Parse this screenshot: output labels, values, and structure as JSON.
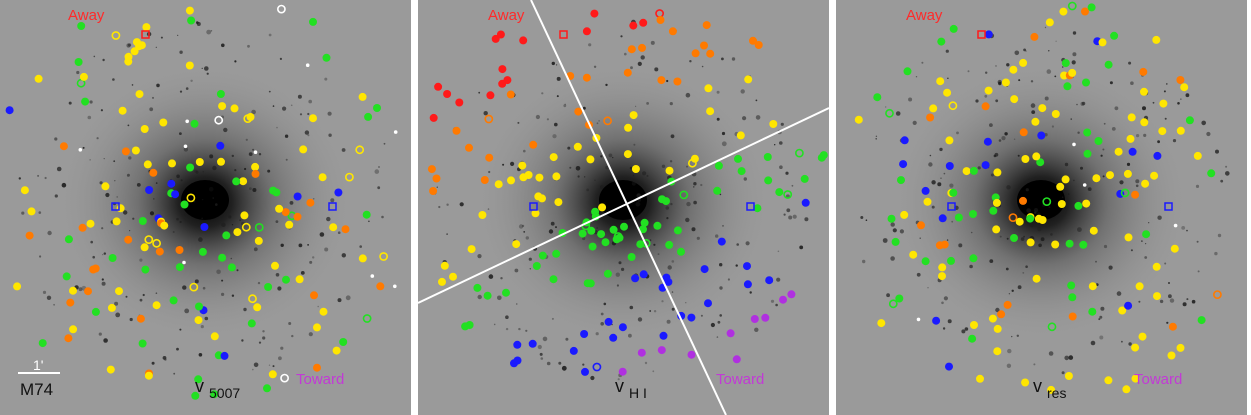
{
  "figure": {
    "panels": [
      {
        "id": "v5007",
        "away_label": "Away",
        "toward_label": "Toward",
        "velocity_symbol": "v",
        "velocity_subscript": "5007",
        "scale_bar_label": "1'",
        "galaxy_name": "M74",
        "has_axes_lines": false
      },
      {
        "id": "vHI",
        "away_label": "Away",
        "toward_label": "Toward",
        "velocity_symbol": "v",
        "velocity_subscript": "H I",
        "scale_bar_label": "",
        "galaxy_name": "",
        "has_axes_lines": true
      },
      {
        "id": "vres",
        "away_label": "Away",
        "toward_label": "Toward",
        "velocity_symbol": "v",
        "velocity_subscript": "res",
        "scale_bar_label": "",
        "galaxy_name": "",
        "has_axes_lines": false
      }
    ],
    "colors": {
      "background_sky": "#9a9a9a",
      "away_text": "#ff2a2a",
      "toward_text": "#c23ad6",
      "marker_red": "#ff1a1a",
      "marker_orange": "#ff7a00",
      "marker_yellow": "#ffe600",
      "marker_green": "#22e022",
      "marker_blue": "#1a1aff",
      "marker_purple": "#b030e0",
      "marker_white": "#ffffff"
    }
  }
}
